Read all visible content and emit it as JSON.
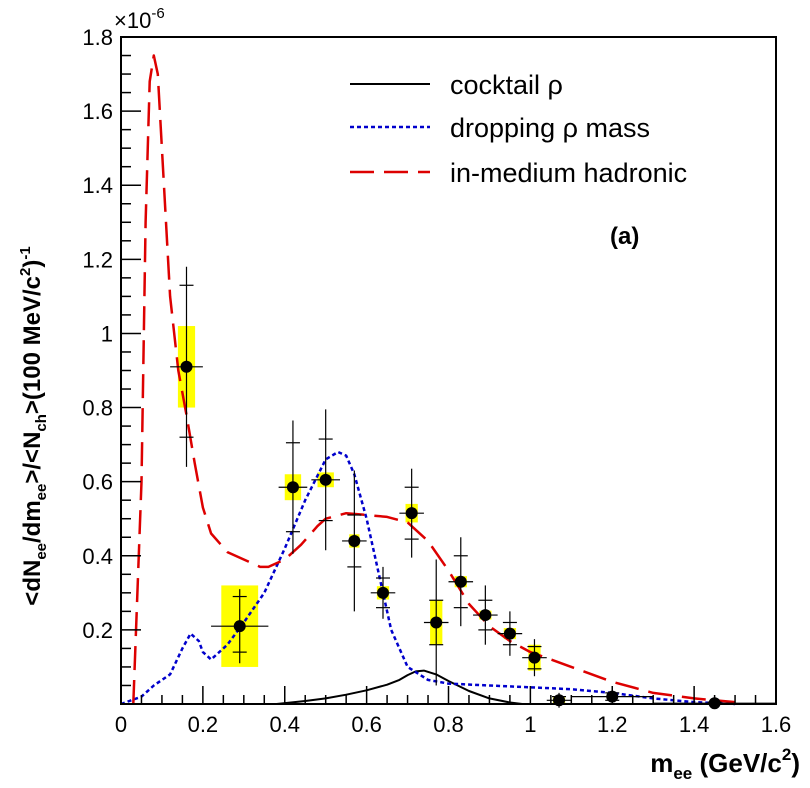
{
  "chart_data": {
    "type": "scatter",
    "title": "",
    "xlabel": {
      "base": "m",
      "sub": "ee",
      "unit_open": " (GeV/c",
      "unit_sup": "2",
      "unit_close": ")"
    },
    "ylabel": {
      "p1": "<dN",
      "s1": "ee",
      "p2": "/dm",
      "s2": "ee",
      "p3": ">/<N",
      "s3": "ch",
      "p4": ">(100 MeV/c",
      "sup1": "2",
      "p5": ")",
      "sup2": "-1"
    },
    "multiplier": {
      "base": "×10",
      "exp": "-6"
    },
    "annotation": "(a)",
    "xlim": [
      0,
      1.6
    ],
    "ylim": [
      0,
      1.8
    ],
    "x_ticks": [
      0,
      0.2,
      0.4,
      0.6,
      0.8,
      1,
      1.2,
      1.4,
      1.6
    ],
    "x_tick_labels": [
      "0",
      "0.2",
      "0.4",
      "0.6",
      "0.8",
      "1",
      "1.2",
      "1.4",
      "1.6"
    ],
    "y_ticks": [
      0.2,
      0.4,
      0.6,
      0.8,
      1,
      1.2,
      1.4,
      1.6,
      1.8
    ],
    "y_tick_labels": [
      "0.2",
      "0.4",
      "0.6",
      "0.8",
      "1",
      "1.2",
      "1.4",
      "1.6",
      "1.8"
    ],
    "legend_position": "top-right",
    "series": [
      {
        "name": "data",
        "type": "points",
        "points": [
          {
            "x": 0.16,
            "y": 0.91,
            "xerr": 0.04,
            "stat_lo": 0.19,
            "stat_hi": 0.22,
            "tot_lo": 0.27,
            "tot_hi": 0.27,
            "sys_w": 0.042,
            "sys_lo": 0.11,
            "sys_hi": 0.11
          },
          {
            "x": 0.29,
            "y": 0.21,
            "xerr": 0.07,
            "stat_lo": 0.07,
            "stat_hi": 0.08,
            "tot_lo": 0.1,
            "tot_hi": 0.1,
            "sys_w": 0.09,
            "sys_lo": 0.11,
            "sys_hi": 0.11
          },
          {
            "x": 0.42,
            "y": 0.585,
            "xerr": 0.035,
            "stat_lo": 0.12,
            "stat_hi": 0.12,
            "tot_lo": 0.18,
            "tot_hi": 0.18,
            "sys_w": 0.04,
            "sys_lo": 0.035,
            "sys_hi": 0.035
          },
          {
            "x": 0.5,
            "y": 0.605,
            "xerr": 0.035,
            "stat_lo": 0.11,
            "stat_hi": 0.11,
            "tot_lo": 0.19,
            "tot_hi": 0.19,
            "sys_w": 0.04,
            "sys_lo": 0.02,
            "sys_hi": 0.02
          },
          {
            "x": 0.57,
            "y": 0.44,
            "xerr": 0.03,
            "stat_lo": 0.07,
            "stat_hi": 0.07,
            "tot_lo": 0.19,
            "tot_hi": 0.19,
            "sys_w": 0.025,
            "sys_lo": 0.018,
            "sys_hi": 0.018
          },
          {
            "x": 0.64,
            "y": 0.3,
            "xerr": 0.03,
            "stat_lo": 0.04,
            "stat_hi": 0.04,
            "tot_lo": 0.07,
            "tot_hi": 0.07,
            "sys_w": 0.03,
            "sys_lo": 0.018,
            "sys_hi": 0.018
          },
          {
            "x": 0.71,
            "y": 0.515,
            "xerr": 0.03,
            "stat_lo": 0.07,
            "stat_hi": 0.07,
            "tot_lo": 0.12,
            "tot_hi": 0.12,
            "sys_w": 0.03,
            "sys_lo": 0.025,
            "sys_hi": 0.025
          },
          {
            "x": 0.77,
            "y": 0.22,
            "xerr": 0.03,
            "stat_lo": 0.06,
            "stat_hi": 0.06,
            "tot_lo": 0.17,
            "tot_hi": 0.17,
            "sys_w": 0.03,
            "sys_lo": 0.06,
            "sys_hi": 0.06
          },
          {
            "x": 0.83,
            "y": 0.33,
            "xerr": 0.03,
            "stat_lo": 0.07,
            "stat_hi": 0.07,
            "tot_lo": 0.12,
            "tot_hi": 0.12,
            "sys_w": 0.03,
            "sys_lo": 0.015,
            "sys_hi": 0.015
          },
          {
            "x": 0.89,
            "y": 0.24,
            "xerr": 0.03,
            "stat_lo": 0.04,
            "stat_hi": 0.04,
            "tot_lo": 0.08,
            "tot_hi": 0.08,
            "sys_w": 0.03,
            "sys_lo": 0.012,
            "sys_hi": 0.012
          },
          {
            "x": 0.95,
            "y": 0.19,
            "xerr": 0.03,
            "stat_lo": 0.03,
            "stat_hi": 0.03,
            "tot_lo": 0.06,
            "tot_hi": 0.06,
            "sys_w": 0.03,
            "sys_lo": 0.015,
            "sys_hi": 0.015
          },
          {
            "x": 1.01,
            "y": 0.125,
            "xerr": 0.03,
            "stat_lo": 0.03,
            "stat_hi": 0.03,
            "tot_lo": 0.05,
            "tot_hi": 0.05,
            "sys_w": 0.03,
            "sys_lo": 0.035,
            "sys_hi": 0.035
          },
          {
            "x": 1.07,
            "y": 0.01,
            "xerr": 0.03,
            "stat_lo": 0.01,
            "stat_hi": 0.01,
            "tot_lo": 0.02,
            "tot_hi": 0.02,
            "sys_w": 0.03,
            "sys_lo": 0.008,
            "sys_hi": 0.008
          },
          {
            "x": 1.2,
            "y": 0.02,
            "xerr": 0.1,
            "stat_lo": 0.01,
            "stat_hi": 0.01,
            "tot_lo": 0.02,
            "tot_hi": 0.02,
            "sys_w": 0.0,
            "sys_lo": 0.0,
            "sys_hi": 0.0
          },
          {
            "x": 1.45,
            "y": 0.002,
            "xerr": 0.15,
            "stat_lo": 0.003,
            "stat_hi": 0.003,
            "tot_lo": 0.005,
            "tot_hi": 0.005,
            "sys_w": 0.0,
            "sys_lo": 0.0,
            "sys_hi": 0.0
          }
        ]
      },
      {
        "name": "cocktail ρ",
        "type": "line",
        "style": "solid",
        "color": "#000000",
        "x": [
          0.38,
          0.45,
          0.5,
          0.55,
          0.6,
          0.65,
          0.68,
          0.7,
          0.72,
          0.74,
          0.77,
          0.8,
          0.85,
          0.9,
          0.95,
          0.98
        ],
        "y": [
          0.0,
          0.008,
          0.015,
          0.025,
          0.037,
          0.052,
          0.065,
          0.078,
          0.088,
          0.09,
          0.08,
          0.062,
          0.035,
          0.015,
          0.004,
          0.0
        ]
      },
      {
        "name": "dropping ρ mass",
        "type": "line",
        "style": "dotted",
        "color": "#0000cc",
        "x": [
          0.0,
          0.05,
          0.08,
          0.12,
          0.15,
          0.17,
          0.19,
          0.2,
          0.22,
          0.26,
          0.3,
          0.35,
          0.4,
          0.45,
          0.5,
          0.53,
          0.55,
          0.57,
          0.6,
          0.63,
          0.66,
          0.7,
          0.75,
          0.8,
          0.9,
          1.0,
          1.1,
          1.2,
          1.3,
          1.4,
          1.5
        ],
        "y": [
          0.0,
          0.02,
          0.05,
          0.08,
          0.15,
          0.19,
          0.17,
          0.14,
          0.12,
          0.16,
          0.22,
          0.3,
          0.42,
          0.55,
          0.66,
          0.68,
          0.67,
          0.62,
          0.5,
          0.35,
          0.2,
          0.1,
          0.065,
          0.055,
          0.05,
          0.045,
          0.04,
          0.03,
          0.015,
          0.005,
          0.0
        ]
      },
      {
        "name": "in-medium hadronic",
        "type": "line",
        "style": "long-dash",
        "color": "#dd0000",
        "x": [
          0.03,
          0.05,
          0.06,
          0.07,
          0.08,
          0.09,
          0.1,
          0.12,
          0.14,
          0.16,
          0.18,
          0.2,
          0.22,
          0.26,
          0.3,
          0.34,
          0.36,
          0.4,
          0.44,
          0.48,
          0.5,
          0.55,
          0.6,
          0.65,
          0.7,
          0.75,
          0.8,
          0.85,
          0.9,
          0.95,
          1.0,
          1.1,
          1.2,
          1.3,
          1.4,
          1.5
        ],
        "y": [
          0.0,
          0.6,
          1.3,
          1.68,
          1.75,
          1.7,
          1.5,
          1.1,
          0.9,
          0.78,
          0.65,
          0.53,
          0.46,
          0.41,
          0.39,
          0.37,
          0.37,
          0.39,
          0.43,
          0.48,
          0.5,
          0.515,
          0.51,
          0.505,
          0.49,
          0.44,
          0.36,
          0.27,
          0.21,
          0.17,
          0.14,
          0.1,
          0.06,
          0.03,
          0.015,
          0.005
        ]
      }
    ]
  }
}
